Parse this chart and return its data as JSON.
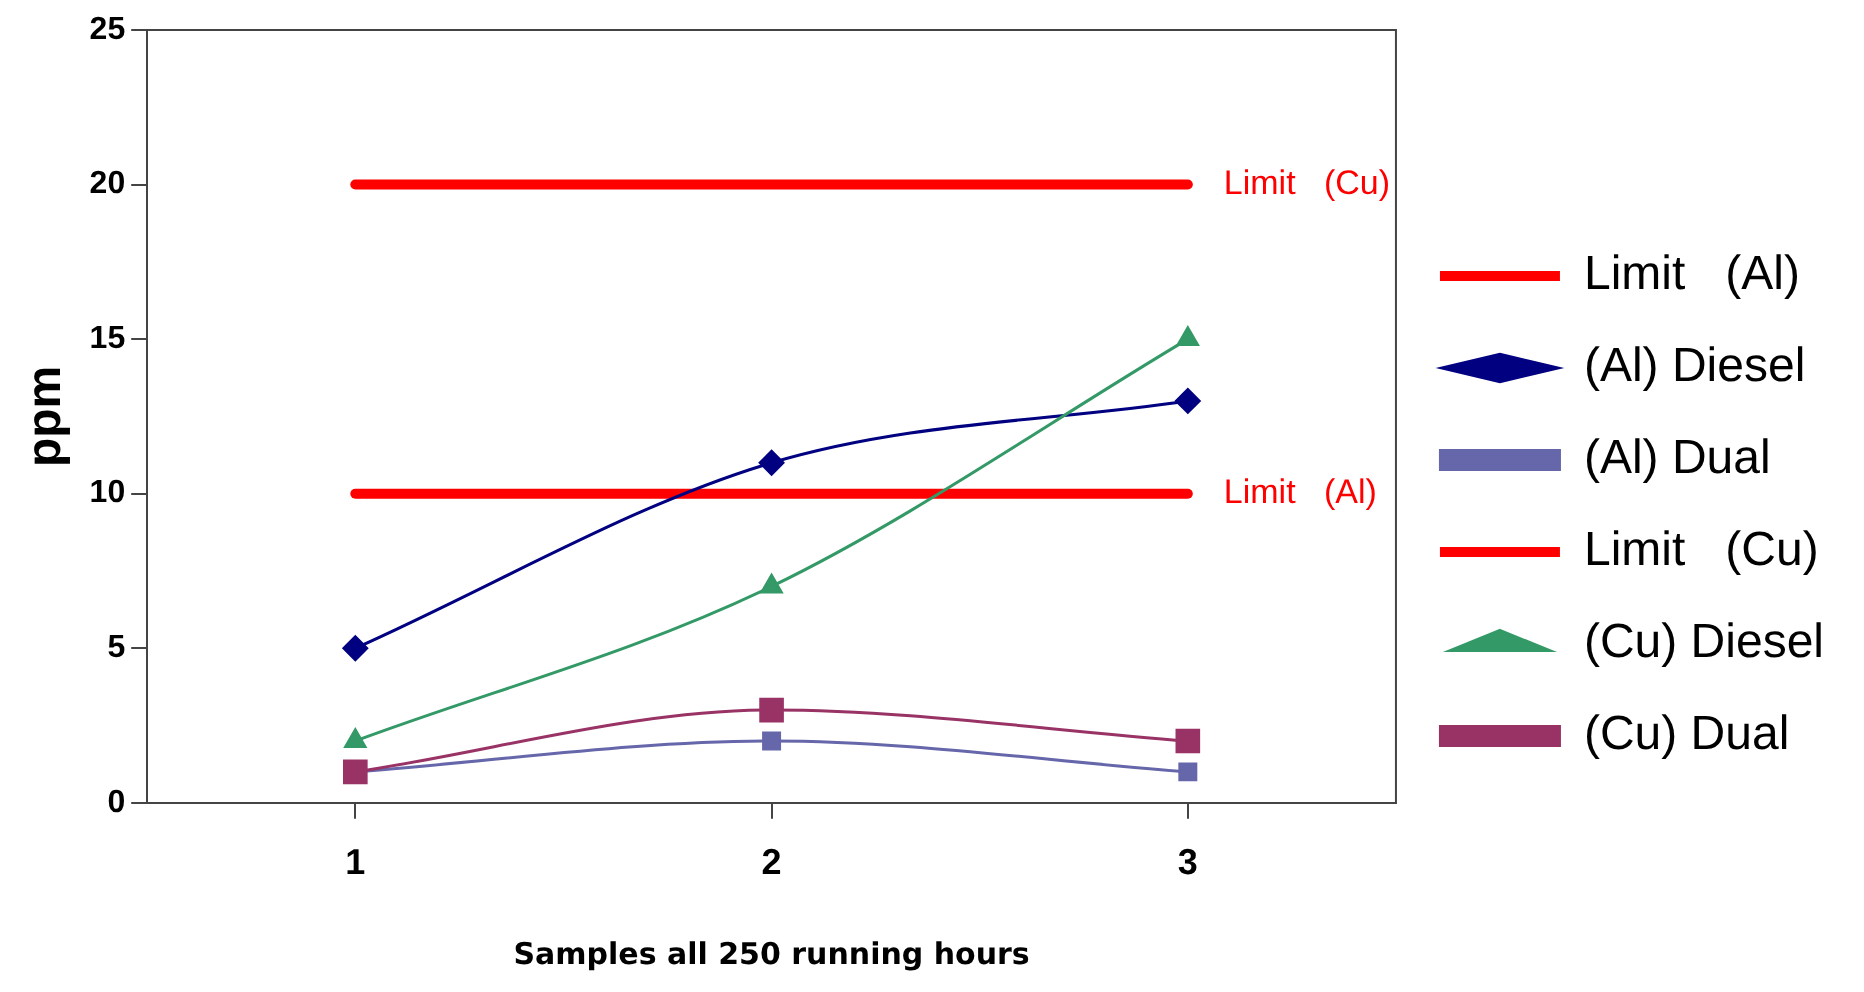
{
  "chart_data": {
    "type": "line",
    "xlabel": "Samples all 250 running hours",
    "ylabel": "ppm",
    "categories": [
      "1",
      "2",
      "3"
    ],
    "ylim": [
      0,
      25
    ],
    "yticks": [
      0,
      5,
      10,
      15,
      20,
      25
    ],
    "grid": false,
    "legend": "right",
    "series": [
      {
        "name": "Limit   (Al)",
        "color": "#ff0000",
        "values": [
          10,
          10,
          10
        ],
        "marker": "none"
      },
      {
        "name": "(Al) Diesel",
        "color": "#000080",
        "values": [
          5,
          11,
          13
        ],
        "marker": "diamond"
      },
      {
        "name": "(Al) Dual",
        "color": "#6666aa",
        "values": [
          1,
          2,
          1
        ],
        "marker": "square"
      },
      {
        "name": "Limit   (Cu)",
        "color": "#ff0000",
        "values": [
          20,
          20,
          20
        ],
        "marker": "none"
      },
      {
        "name": "(Cu) Diesel",
        "color": "#339966",
        "values": [
          2,
          7,
          15
        ],
        "marker": "triangle"
      },
      {
        "name": "(Cu) Dual",
        "color": "#993366",
        "values": [
          1,
          3,
          2
        ],
        "marker": "square"
      }
    ],
    "annotations": [
      {
        "text": "Limit   (Cu)",
        "x": "3",
        "y": 20
      },
      {
        "text": "Limit   (Al)",
        "x": "3",
        "y": 10
      }
    ]
  }
}
